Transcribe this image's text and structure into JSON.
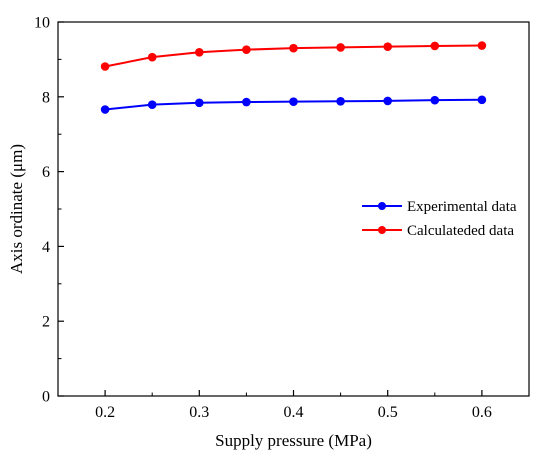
{
  "chart_data": {
    "type": "line",
    "title": "",
    "xlabel": "Supply pressure (MPa)",
    "ylabel": "Axis ordinate (μm)",
    "xlim": [
      0.15,
      0.65
    ],
    "ylim": [
      0,
      10
    ],
    "xticks": [
      "0.2",
      "0.3",
      "0.4",
      "0.5",
      "0.6"
    ],
    "yticks": [
      "0",
      "2",
      "4",
      "6",
      "8",
      "10"
    ],
    "xtick_values": [
      0.2,
      0.3,
      0.4,
      0.5,
      0.6
    ],
    "ytick_values": [
      0,
      2,
      4,
      6,
      8,
      10
    ],
    "x": [
      0.2,
      0.25,
      0.3,
      0.35,
      0.4,
      0.45,
      0.5,
      0.55,
      0.6
    ],
    "grid": false,
    "legend_position": "center-right",
    "series": [
      {
        "name": "Experimental data",
        "color": "#0000ff",
        "values": [
          7.66,
          7.79,
          7.84,
          7.86,
          7.87,
          7.88,
          7.89,
          7.91,
          7.92
        ]
      },
      {
        "name": "Calculateded data",
        "color": "#ff0000",
        "values": [
          8.81,
          9.06,
          9.19,
          9.26,
          9.3,
          9.32,
          9.34,
          9.36,
          9.37
        ]
      }
    ]
  }
}
